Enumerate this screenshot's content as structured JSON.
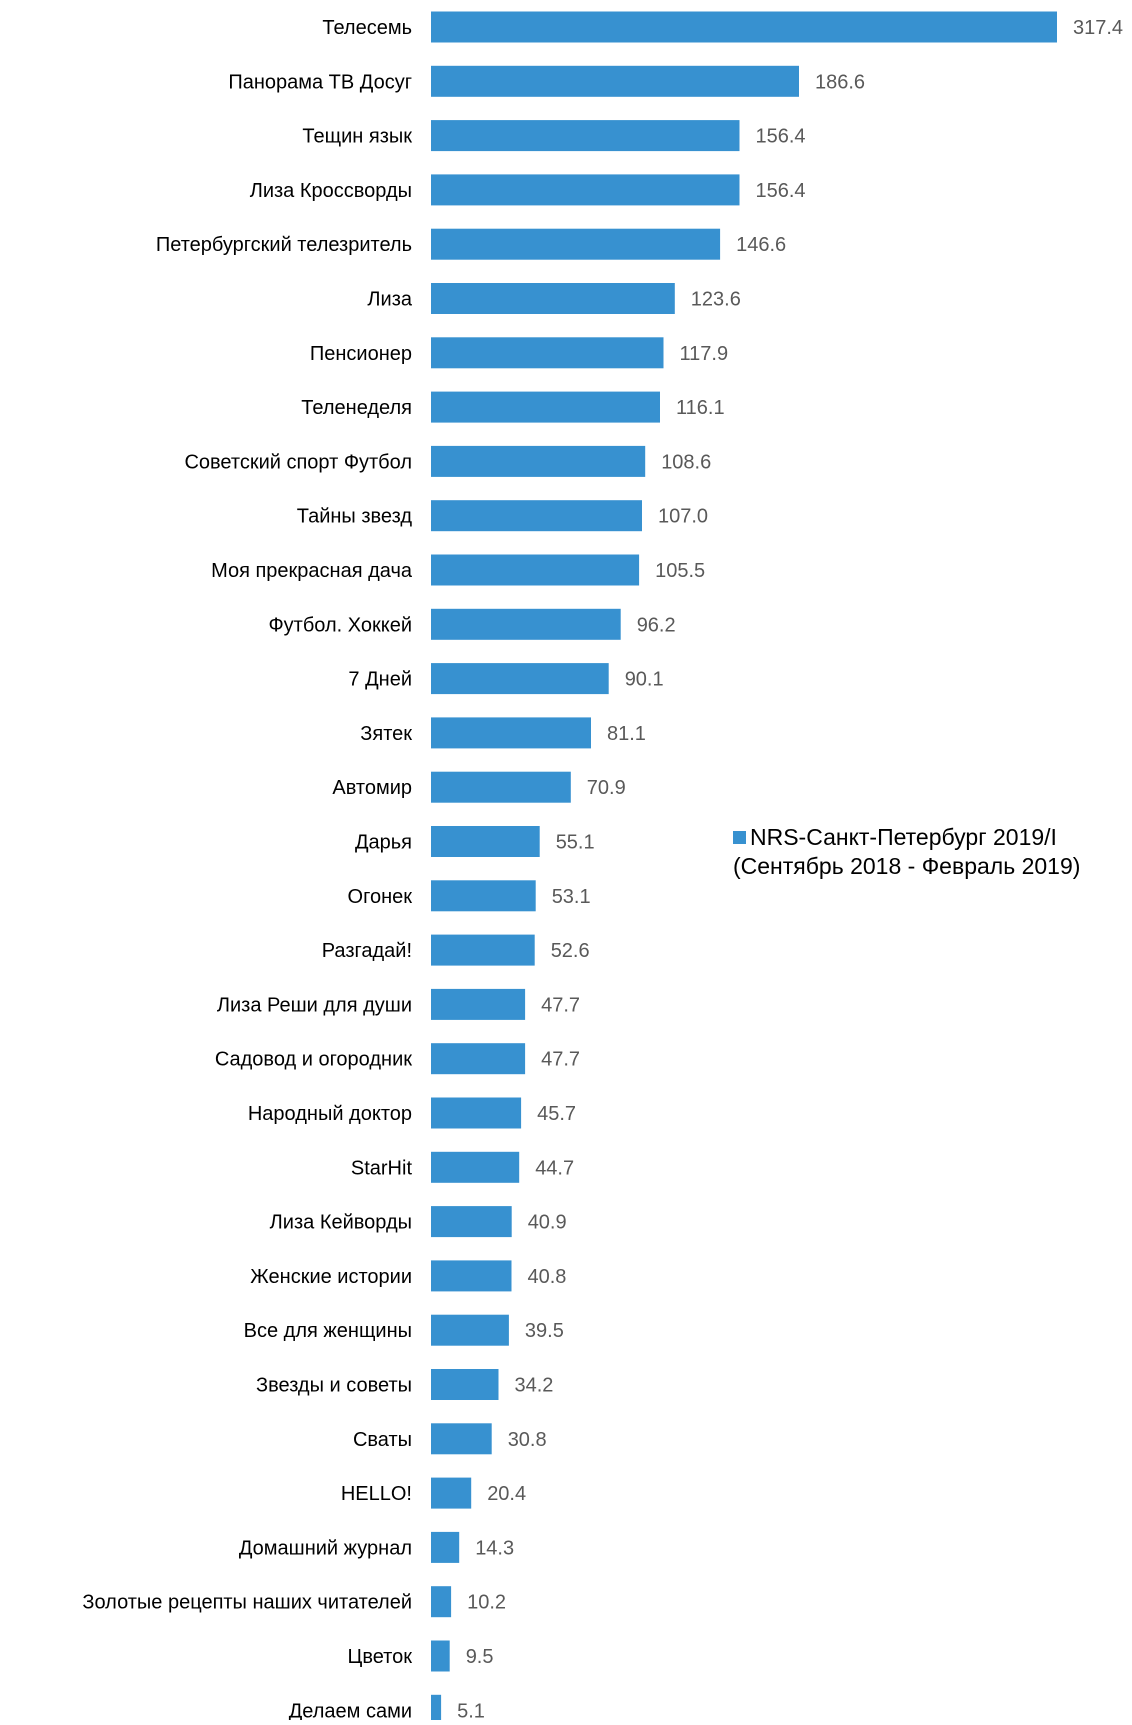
{
  "chart_data": {
    "type": "bar",
    "orientation": "horizontal",
    "categories": [
      "Телесемь",
      "Панорама ТВ Досуг",
      "Тещин язык",
      "Лиза Кроссворды",
      "Петербургский телезритель",
      "Лиза",
      "Пенсионер",
      "Теленеделя",
      "Советский спорт Футбол",
      "Тайны звезд",
      "Моя прекрасная дача",
      "Футбол. Хоккей",
      "7 Дней",
      "Зятек",
      "Автомир",
      "Дарья",
      "Огонек",
      "Разгадай!",
      "Лиза Реши для души",
      "Садовод и огородник",
      "Народный доктор",
      "StarHit",
      "Лиза Кейворды",
      "Женские истории",
      "Все для женщины",
      "Звезды и советы",
      "Сваты",
      "HELLO!",
      "Домашний журнал",
      "Золотые рецепты наших читателей",
      "Цветок",
      "Делаем сами"
    ],
    "series": [
      {
        "name": "NRS-Санкт-Петербург 2019/I (Сентябрь 2018 - Февраль 2019)",
        "color": "#3791D0",
        "values": [
          317.4,
          186.6,
          156.4,
          156.4,
          146.6,
          123.6,
          117.9,
          116.1,
          108.6,
          107.0,
          105.5,
          96.2,
          90.1,
          81.1,
          70.9,
          55.1,
          53.1,
          52.6,
          47.7,
          47.7,
          45.7,
          44.7,
          40.9,
          40.8,
          39.5,
          34.2,
          30.8,
          20.4,
          14.3,
          10.2,
          9.5,
          5.1
        ]
      }
    ],
    "value_labels": [
      "317.4",
      "186.6",
      "156.4",
      "156.4",
      "146.6",
      "123.6",
      "117.9",
      "116.1",
      "108.6",
      "107.0",
      "105.5",
      "96.2",
      "90.1",
      "81.1",
      "70.9",
      "55.1",
      "53.1",
      "52.6",
      "47.7",
      "47.7",
      "45.7",
      "44.7",
      "40.9",
      "40.8",
      "39.5",
      "34.2",
      "30.8",
      "20.4",
      "14.3",
      "10.2",
      "9.5",
      "5.1"
    ],
    "xlim": [
      0,
      317.4
    ],
    "grid": false,
    "legend_position": "right",
    "label_color": "#000000",
    "value_label_color": "#595959"
  },
  "legend": {
    "label": "NRS-Санкт-Петербург 2019/I (Сентябрь 2018 - Февраль 2019)",
    "swatch_color": "#3791D0"
  }
}
